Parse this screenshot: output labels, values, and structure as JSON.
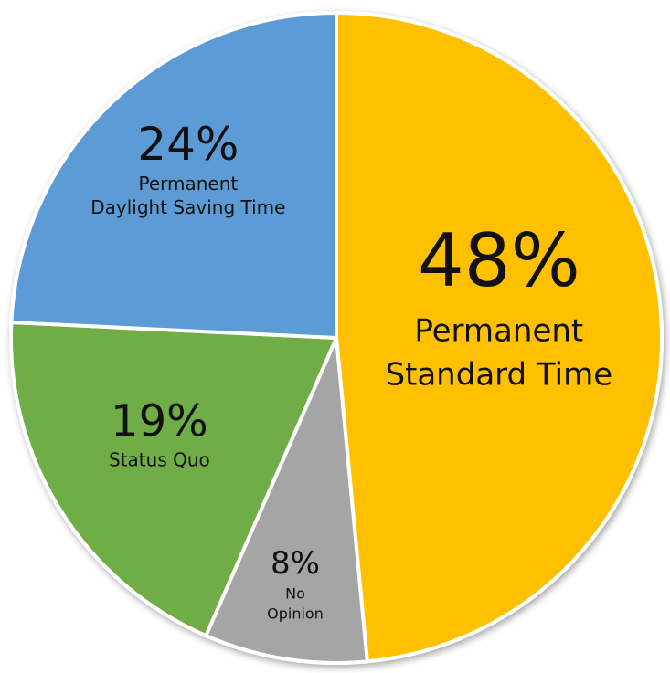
{
  "chart_data": {
    "type": "pie",
    "title": "",
    "start": "top-center, clockwise",
    "slices": [
      {
        "value": 48,
        "pct_label": "48%",
        "label_lines": [
          "Permanent",
          "Standard Time"
        ],
        "color": "#FFC000"
      },
      {
        "value": 8,
        "pct_label": "8%",
        "label_lines": [
          "No",
          "Opinion"
        ],
        "color": "#A5A5A5"
      },
      {
        "value": 19,
        "pct_label": "19%",
        "label_lines": [
          "Status Quo"
        ],
        "color": "#70AD47"
      },
      {
        "value": 24,
        "pct_label": "24%",
        "label_lines": [
          "Permanent",
          "Daylight Saving Time"
        ],
        "color": "#5B9BD5"
      }
    ],
    "slice_border_color": "#ffffff",
    "legend": "none"
  }
}
